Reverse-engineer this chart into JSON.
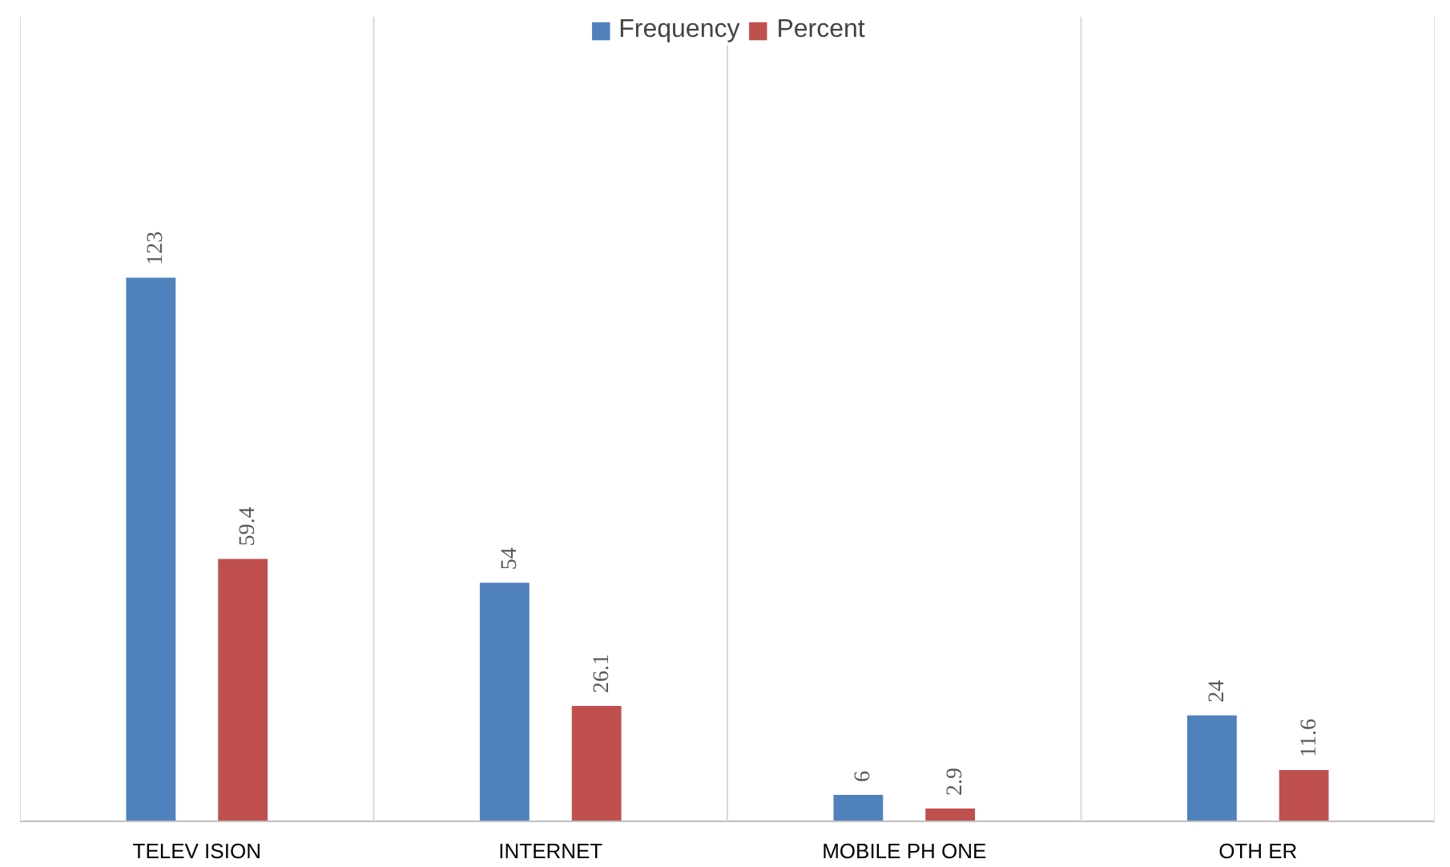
{
  "chart_data": {
    "type": "bar",
    "categories": [
      "TELEV ISION",
      "INTERNET",
      "MOBILE PH ONE",
      "OTH ER"
    ],
    "series": [
      {
        "name": "Frequency",
        "color": "#4f81bd",
        "values": [
          123,
          54,
          6,
          24
        ]
      },
      {
        "name": "Percent",
        "color": "#c0504d",
        "values": [
          59.4,
          26.1,
          2.9,
          11.6
        ]
      }
    ],
    "data_labels": true,
    "legend": "top",
    "grid": false
  }
}
